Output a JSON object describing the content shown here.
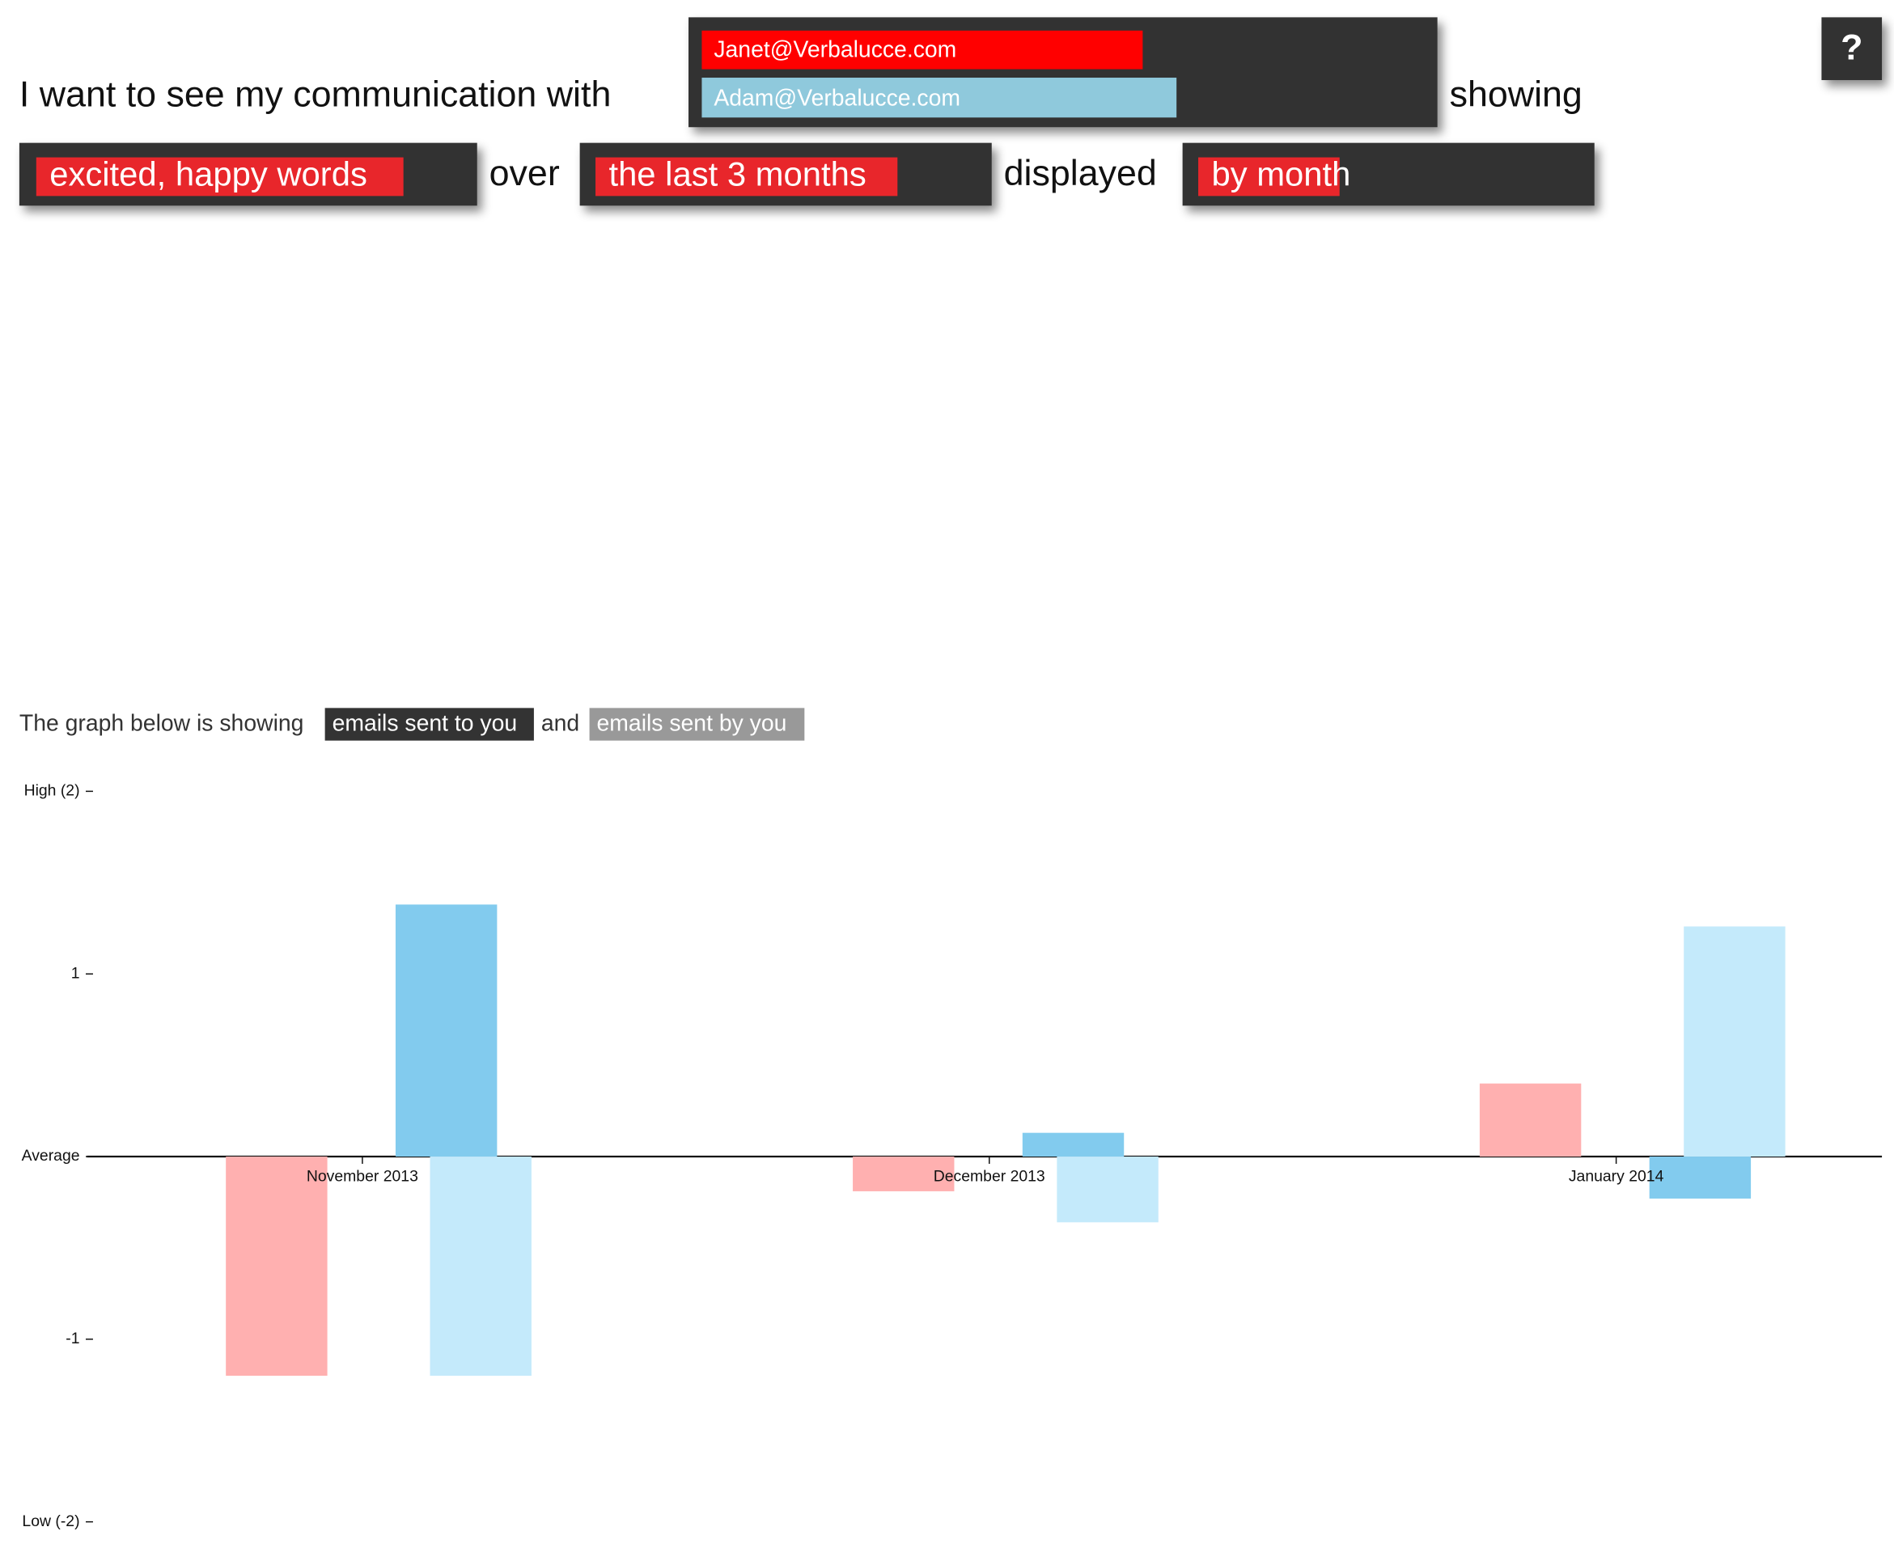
{
  "header": {
    "lead": "I want to see my communication with",
    "contacts": [
      "Janet@Verbalucce.com",
      "Adam@Verbalucce.com"
    ],
    "showing": "showing",
    "measure": "excited, happy words",
    "over": "over",
    "period": "the last 3 months",
    "displayed": "displayed",
    "grouping": "by month",
    "help": "?"
  },
  "legend": {
    "intro": "The graph below is showing",
    "received": "emails sent to you",
    "and": "and",
    "sent": "emails sent by you"
  },
  "chart_data": {
    "type": "bar",
    "categories": [
      "November 2013",
      "December 2013",
      "January 2014"
    ],
    "series": [
      {
        "color": "#ffb0b0",
        "values": [
          -1.2,
          -0.19,
          0.4
        ]
      },
      {
        "color": "#82cbee",
        "values": [
          1.38,
          0.13,
          -0.23
        ]
      },
      {
        "color": "#c4eafb",
        "values": [
          -1.2,
          -0.36,
          1.26
        ]
      }
    ],
    "ylim": [
      -2,
      2
    ],
    "yticks": [
      {
        "value": -2,
        "label": "Low (-2)"
      },
      -1,
      {
        "value": 0,
        "label": "Average"
      },
      1,
      {
        "value": 2,
        "label": "High (2)"
      }
    ]
  }
}
